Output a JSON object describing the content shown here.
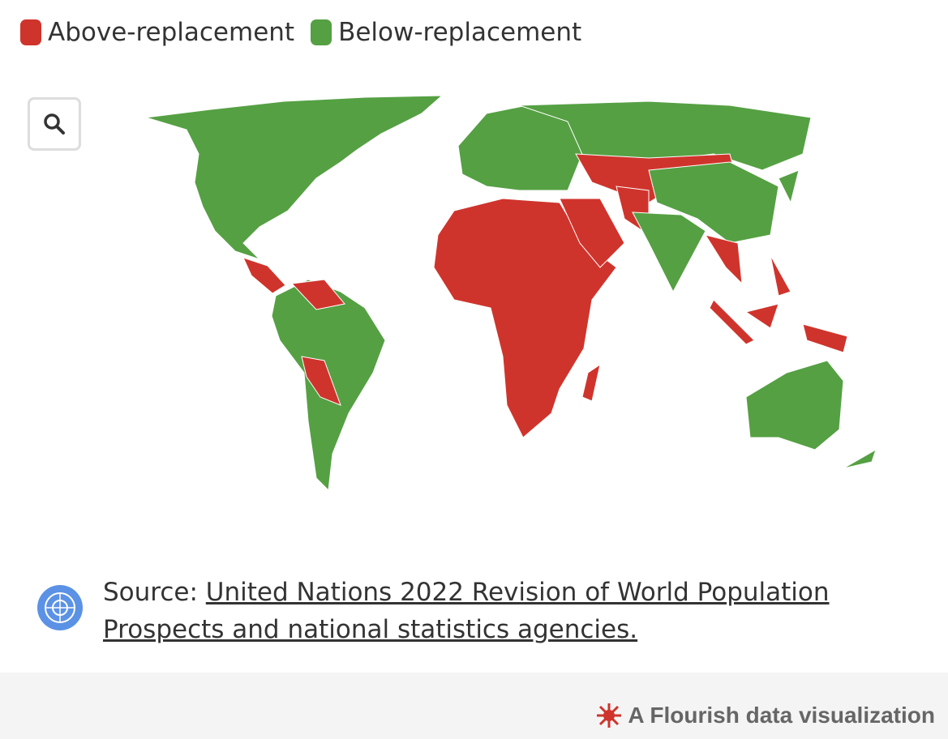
{
  "legend": {
    "items": [
      {
        "name": "Above-replacement",
        "color": "#cf342c"
      },
      {
        "name": "Below-replacement",
        "color": "#55a043"
      }
    ]
  },
  "source": {
    "label": "Source:",
    "link": "United Nations 2022 Revision of World Population Prospects and national statistics agencies."
  },
  "footer": {
    "credit": "A Flourish data visualization"
  }
}
